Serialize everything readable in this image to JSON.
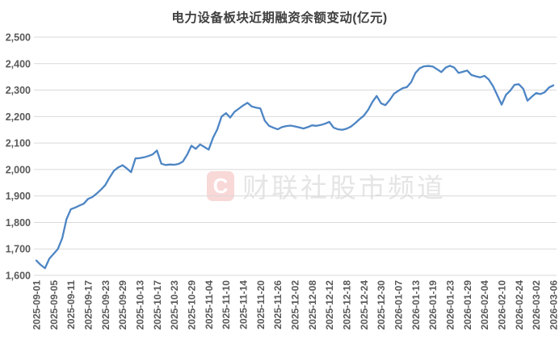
{
  "title": "电力设备板块近期融资余额变动(亿元)",
  "watermark": {
    "logo_letter": "C",
    "text": "财联社股市频道"
  },
  "colors": {
    "line": "#4d85c4",
    "grid": "#d9d9d9",
    "axis_label": "#595959",
    "title": "#404040"
  },
  "chart_data": {
    "type": "line",
    "title": "电力设备板块近期融资余额变动(亿元)",
    "xlabel": "",
    "ylabel": "",
    "ylim": [
      1600,
      2500
    ],
    "grid": "horizontal",
    "legend": "none",
    "yticks": [
      2500,
      2400,
      2300,
      2200,
      2100,
      2000,
      1900,
      1800,
      1700,
      1600
    ],
    "ytick_labels": [
      "2,500",
      "2,400",
      "2,300",
      "2,200",
      "2,100",
      "2,000",
      "1,900",
      "1,800",
      "1,700",
      "1,600"
    ],
    "x_labels": [
      "2025-09-01",
      "2025-09-05",
      "2025-09-11",
      "2025-09-17",
      "2025-09-23",
      "2025-09-29",
      "2025-10-13",
      "2025-10-17",
      "2025-10-23",
      "2025-10-29",
      "2025-11-04",
      "2025-11-10",
      "2025-11-14",
      "2025-11-20",
      "2025-11-26",
      "2025-12-02",
      "2025-12-08",
      "2025-12-12",
      "2025-12-18",
      "2025-12-24",
      "2025-12-30",
      "2026-01-07",
      "2026-01-13",
      "2026-01-19",
      "2026-01-23",
      "2026-01-29",
      "2026-02-04",
      "2026-02-10",
      "2026-02-24",
      "2026-03-02",
      "2026-03-06"
    ],
    "x_label_every_n_points": 4,
    "series": [
      {
        "name": "融资余额(亿元)",
        "values": [
          1656,
          1640,
          1627,
          1663,
          1681,
          1700,
          1740,
          1812,
          1850,
          1856,
          1864,
          1871,
          1889,
          1896,
          1909,
          1924,
          1941,
          1970,
          1995,
          2008,
          2016,
          2004,
          1990,
          2042,
          2043,
          2046,
          2051,
          2057,
          2072,
          2022,
          2017,
          2019,
          2018,
          2021,
          2030,
          2056,
          2090,
          2078,
          2095,
          2085,
          2075,
          2120,
          2152,
          2200,
          2213,
          2196,
          2218,
          2230,
          2242,
          2252,
          2238,
          2234,
          2231,
          2185,
          2165,
          2158,
          2152,
          2160,
          2164,
          2166,
          2163,
          2159,
          2155,
          2160,
          2167,
          2165,
          2168,
          2173,
          2180,
          2158,
          2152,
          2150,
          2154,
          2162,
          2175,
          2190,
          2203,
          2225,
          2255,
          2278,
          2250,
          2243,
          2262,
          2286,
          2297,
          2307,
          2311,
          2330,
          2365,
          2383,
          2390,
          2391,
          2389,
          2379,
          2368,
          2385,
          2392,
          2385,
          2365,
          2369,
          2374,
          2357,
          2352,
          2348,
          2354,
          2340,
          2315,
          2280,
          2245,
          2282,
          2298,
          2320,
          2322,
          2305,
          2260,
          2275,
          2289,
          2285,
          2292,
          2310,
          2318
        ]
      }
    ]
  }
}
